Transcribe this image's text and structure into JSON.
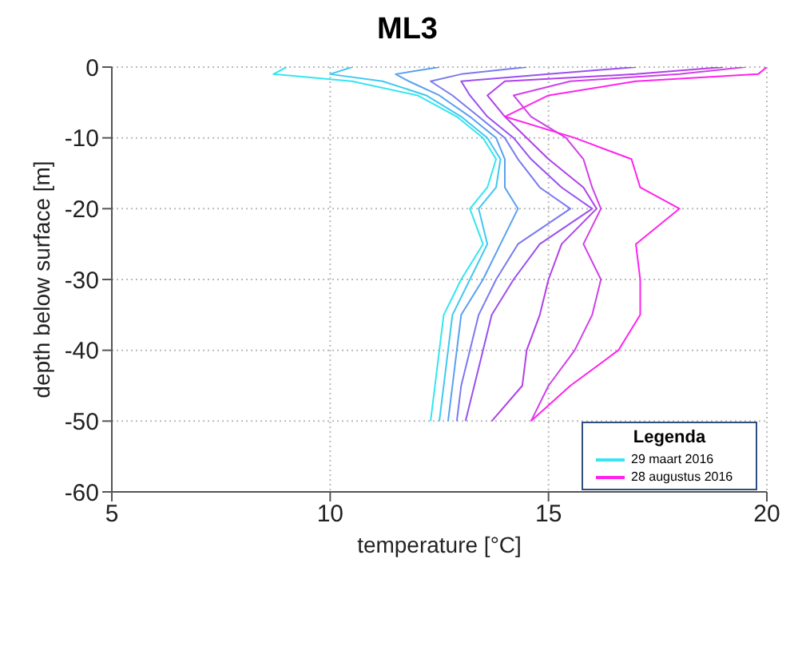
{
  "chart_data": {
    "type": "line",
    "title": "ML3",
    "xlabel": "temperature [°C]",
    "ylabel": "depth below surface [m]",
    "legend_title": "Legenda",
    "legend": "bottom right",
    "grid": true,
    "xlim": [
      5,
      20
    ],
    "xticks": [
      5,
      10,
      15,
      20
    ],
    "ylim": [
      -60,
      0
    ],
    "yticks": [
      -60,
      -50,
      -40,
      -30,
      -20,
      -10,
      0
    ],
    "series": [
      {
        "name": "29 maart 2016",
        "color": "#33e6f0",
        "x": [
          9.0,
          8.7,
          10.5,
          12.0,
          12.9,
          13.5,
          13.8,
          13.6,
          13.2,
          13.5,
          13.0,
          12.6,
          12.5,
          12.4,
          12.3
        ],
        "values": [
          0,
          -1,
          -2,
          -4,
          -7,
          -10,
          -13,
          -17,
          -20,
          -25,
          -30,
          -35,
          -40,
          -45,
          -50
        ]
      },
      {
        "color": "#40c8f0",
        "x": [
          10.5,
          10.0,
          11.2,
          12.2,
          13.0,
          13.6,
          13.9,
          13.8,
          13.4,
          13.6,
          13.2,
          12.8,
          12.7,
          12.6,
          12.5
        ],
        "values": [
          0,
          -1,
          -2,
          -4,
          -7,
          -10,
          -13,
          -17,
          -20,
          -25,
          -30,
          -35,
          -40,
          -45,
          -50
        ]
      },
      {
        "color": "#5aa0f0",
        "x": [
          12.5,
          11.5,
          11.8,
          12.5,
          13.2,
          13.8,
          14.0,
          14.0,
          14.3,
          13.9,
          13.5,
          13.0,
          12.9,
          12.8,
          12.7
        ],
        "values": [
          0,
          -1,
          -2,
          -4,
          -7,
          -10,
          -13,
          -17,
          -20,
          -25,
          -30,
          -35,
          -40,
          -45,
          -50
        ]
      },
      {
        "color": "#7a7af0",
        "x": [
          14.5,
          13.0,
          12.3,
          12.8,
          13.4,
          14.0,
          14.3,
          14.8,
          15.5,
          14.3,
          13.8,
          13.4,
          13.2,
          13.0,
          12.9
        ],
        "values": [
          0,
          -1,
          -2,
          -4,
          -7,
          -10,
          -13,
          -17,
          -20,
          -25,
          -30,
          -35,
          -40,
          -45,
          -50
        ]
      },
      {
        "color": "#9a50f0",
        "x": [
          17.0,
          15.0,
          13.0,
          13.2,
          13.6,
          14.2,
          14.6,
          15.3,
          16.0,
          14.8,
          14.2,
          13.7,
          13.5,
          13.3,
          13.1
        ],
        "values": [
          0,
          -1,
          -2,
          -4,
          -7,
          -10,
          -13,
          -17,
          -20,
          -25,
          -30,
          -35,
          -40,
          -45,
          -50
        ]
      },
      {
        "color": "#b040e8",
        "x": [
          19.0,
          17.0,
          14.0,
          13.6,
          14.0,
          14.5,
          15.0,
          15.8,
          16.1,
          15.3,
          15.0,
          14.8,
          14.5,
          14.4,
          13.7
        ],
        "values": [
          0,
          -1,
          -2,
          -4,
          -7,
          -10,
          -13,
          -17,
          -20,
          -25,
          -30,
          -35,
          -40,
          -45,
          -50
        ]
      },
      {
        "color": "#d040e8",
        "x": [
          19.5,
          18.0,
          15.5,
          14.2,
          14.6,
          15.4,
          15.8,
          16.0,
          16.2,
          15.8,
          16.2,
          16.0,
          15.6,
          15.0,
          14.6
        ],
        "values": [
          0,
          -1,
          -2,
          -4,
          -7,
          -10,
          -13,
          -17,
          -20,
          -25,
          -30,
          -35,
          -40,
          -45,
          -50
        ]
      },
      {
        "name": "28 augustus 2016",
        "color": "#ff22ee",
        "x": [
          20.0,
          19.8,
          17.0,
          15.0,
          14.0,
          15.6,
          16.9,
          17.1,
          18.0,
          17.0,
          17.1,
          17.1,
          16.6,
          15.5,
          14.6
        ],
        "values": [
          0,
          -1,
          -2,
          -4,
          -7,
          -10,
          -13,
          -17,
          -20,
          -25,
          -30,
          -35,
          -40,
          -45,
          -50
        ]
      }
    ]
  }
}
